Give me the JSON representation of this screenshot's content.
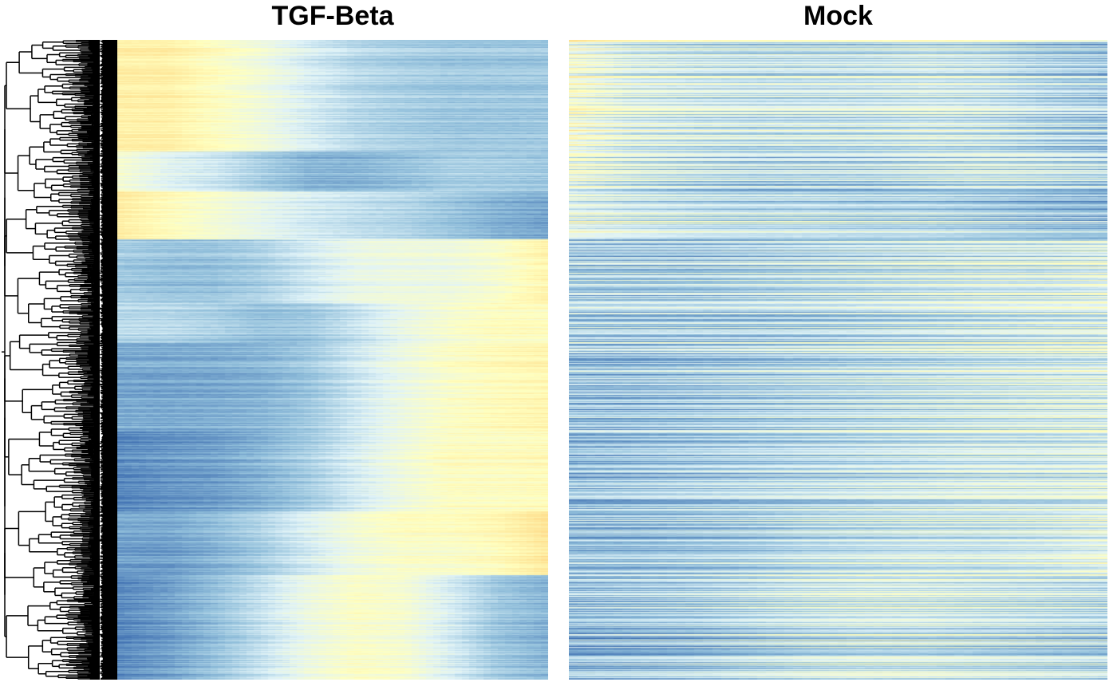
{
  "chart_data": [
    {
      "type": "heatmap",
      "title": "TGF-Beta",
      "row_dendrogram": true,
      "colormap": [
        "#4575b4",
        "#91bfdb",
        "#e0f3f8",
        "#ffffbf",
        "#fee090",
        "#fc8d59",
        "#d73027"
      ],
      "row_clusters": [
        {
          "rows": 140,
          "profile": [
            0.58,
            0.58,
            0.5,
            0.42,
            0.32,
            0.25,
            0.22,
            0.2,
            0.2,
            0.2
          ]
        },
        {
          "rows": 50,
          "profile": [
            0.45,
            0.35,
            0.3,
            0.22,
            0.15,
            0.15,
            0.18,
            0.22,
            0.22,
            0.2
          ]
        },
        {
          "rows": 60,
          "profile": [
            0.6,
            0.52,
            0.45,
            0.38,
            0.32,
            0.28,
            0.25,
            0.2,
            0.15,
            0.12
          ]
        },
        {
          "rows": 80,
          "profile": [
            0.2,
            0.18,
            0.18,
            0.22,
            0.3,
            0.38,
            0.4,
            0.4,
            0.45,
            0.55
          ]
        },
        {
          "rows": 50,
          "profile": [
            0.25,
            0.25,
            0.22,
            0.18,
            0.2,
            0.28,
            0.38,
            0.45,
            0.5,
            0.5
          ]
        },
        {
          "rows": 110,
          "profile": [
            0.12,
            0.12,
            0.13,
            0.15,
            0.2,
            0.3,
            0.4,
            0.48,
            0.52,
            0.55
          ]
        },
        {
          "rows": 100,
          "profile": [
            0.05,
            0.08,
            0.1,
            0.15,
            0.22,
            0.32,
            0.42,
            0.5,
            0.5,
            0.52
          ]
        },
        {
          "rows": 80,
          "profile": [
            0.1,
            0.1,
            0.15,
            0.22,
            0.32,
            0.42,
            0.48,
            0.48,
            0.52,
            0.62
          ]
        },
        {
          "rows": 130,
          "profile": [
            0.05,
            0.1,
            0.18,
            0.28,
            0.4,
            0.48,
            0.45,
            0.32,
            0.2,
            0.15
          ]
        }
      ]
    },
    {
      "type": "heatmap",
      "title": "Mock",
      "colormap": [
        "#4575b4",
        "#91bfdb",
        "#e0f3f8",
        "#ffffbf",
        "#fee090",
        "#fc8d59",
        "#d73027"
      ],
      "row_noise": "high",
      "row_clusters": [
        {
          "rows": 140,
          "profile": [
            0.45,
            0.35,
            0.32,
            0.3,
            0.3,
            0.3,
            0.32,
            0.3,
            0.25,
            0.22
          ]
        },
        {
          "rows": 50,
          "profile": [
            0.4,
            0.32,
            0.28,
            0.25,
            0.25,
            0.25,
            0.28,
            0.3,
            0.28,
            0.25
          ]
        },
        {
          "rows": 60,
          "profile": [
            0.4,
            0.35,
            0.32,
            0.3,
            0.3,
            0.28,
            0.28,
            0.25,
            0.22,
            0.2
          ]
        },
        {
          "rows": 80,
          "profile": [
            0.22,
            0.22,
            0.22,
            0.24,
            0.26,
            0.28,
            0.3,
            0.32,
            0.32,
            0.35
          ]
        },
        {
          "rows": 50,
          "profile": [
            0.25,
            0.25,
            0.25,
            0.25,
            0.26,
            0.28,
            0.3,
            0.32,
            0.34,
            0.35
          ]
        },
        {
          "rows": 110,
          "profile": [
            0.2,
            0.2,
            0.22,
            0.24,
            0.26,
            0.28,
            0.3,
            0.32,
            0.34,
            0.35
          ]
        },
        {
          "rows": 100,
          "profile": [
            0.18,
            0.2,
            0.22,
            0.24,
            0.26,
            0.28,
            0.3,
            0.32,
            0.32,
            0.34
          ]
        },
        {
          "rows": 80,
          "profile": [
            0.2,
            0.2,
            0.22,
            0.24,
            0.28,
            0.3,
            0.32,
            0.32,
            0.34,
            0.38
          ]
        },
        {
          "rows": 130,
          "profile": [
            0.18,
            0.2,
            0.22,
            0.26,
            0.3,
            0.32,
            0.32,
            0.3,
            0.28,
            0.26
          ]
        }
      ]
    }
  ]
}
